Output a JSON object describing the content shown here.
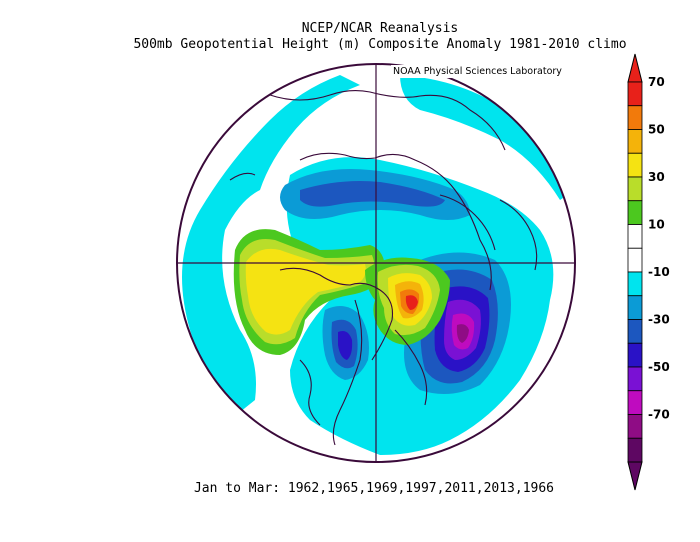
{
  "title_line1": "NCEP/NCAR Reanalysis",
  "title_line2": "500mb Geopotential Height (m) Composite Anomaly 1981-2010 climo",
  "credit": "NOAA Physical Sciences Laboratory",
  "footer": "Jan to Mar: 1962,1965,1969,1997,2011,2013,1966",
  "colorbar": {
    "labels": [
      "70",
      "50",
      "30",
      "10",
      "-10",
      "-30",
      "-50",
      "-70"
    ],
    "colors": [
      "#e8211a",
      "#f27a0b",
      "#f4b30a",
      "#f5e312",
      "#b9dd2a",
      "#4cc81f",
      "#ffffff",
      "#ffffff",
      "#00e4ee",
      "#0b9bd6",
      "#1c57bf",
      "#2a12c6",
      "#7a11d4",
      "#bf0bbf",
      "#8f0c85",
      "#5e0762"
    ]
  },
  "map": {
    "projection": "north-polar-stereographic",
    "anomaly_features": [
      {
        "name": "Pacific positive anomaly",
        "range": "20-40 m"
      },
      {
        "name": "Alaska/Yukon positive anomaly",
        "range": "30-70 m"
      },
      {
        "name": "North Atlantic negative anomaly",
        "range": "-30 to -70 m"
      },
      {
        "name": "North Pacific negative anomaly",
        "range": "-20 to -40 m"
      },
      {
        "name": "Siberia negative anomaly band",
        "range": "-10 to -30 m"
      }
    ]
  }
}
